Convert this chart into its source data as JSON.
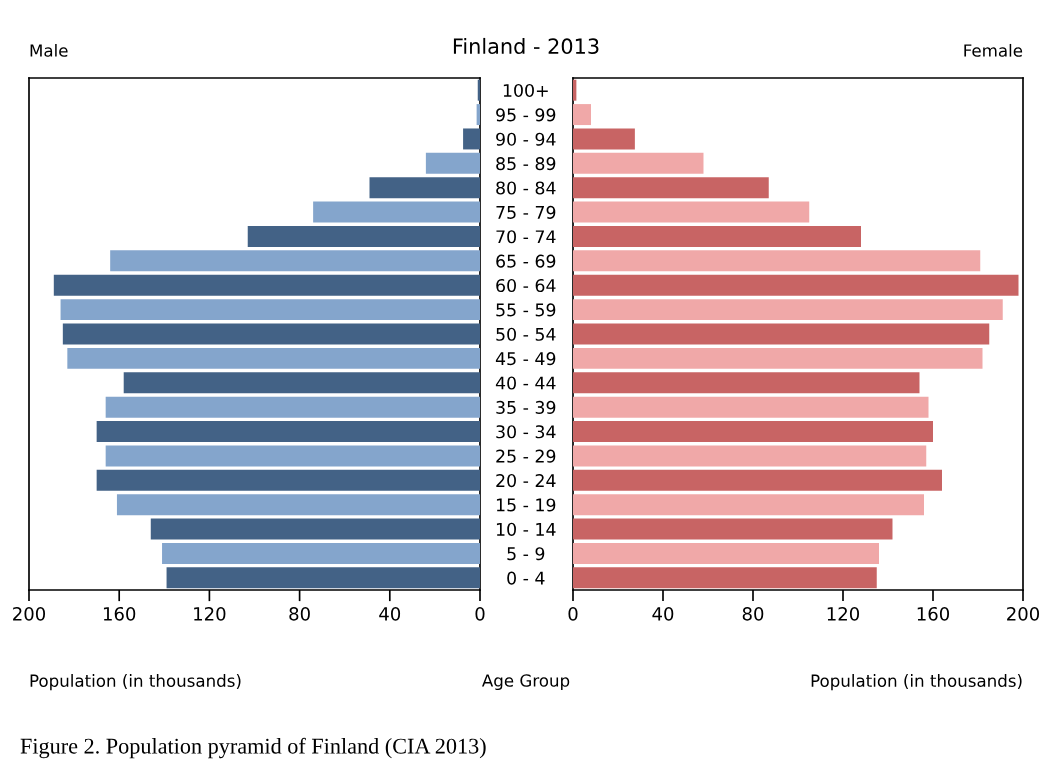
{
  "chart_data": [
    {
      "type": "bar",
      "orientation": "horizontal",
      "title": "Male",
      "xlabel": "Population (in thousands)",
      "annotations": [
        "Finland - 2013"
      ],
      "categories": [
        null,
        null,
        null,
        null,
        null,
        null,
        null,
        null,
        null,
        null,
        null,
        null,
        null,
        null,
        null,
        null,
        null,
        null,
        null,
        null,
        null
      ],
      "values": [
        1,
        1.5,
        7.5,
        24,
        49,
        74,
        103,
        164,
        189,
        186,
        185,
        183,
        158,
        166,
        170,
        166,
        170,
        161,
        146,
        141,
        139
      ],
      "colors": [
        "#436286",
        "#84a5cc",
        "#436286",
        "#84a5cc",
        "#436286",
        "#84a5cc",
        "#436286",
        "#84a5cc",
        "#436286",
        "#84a5cc",
        "#436286",
        "#84a5cc",
        "#436286",
        "#84a5cc",
        "#436286",
        "#84a5cc",
        "#436286",
        "#84a5cc",
        "#436286",
        "#84a5cc",
        "#436286"
      ],
      "xlim": [
        200,
        0
      ],
      "xticks": [
        200,
        160,
        120,
        80,
        40,
        0
      ],
      "tick_labels": "x",
      "grid": false,
      "legend": false
    },
    {
      "type": "bar",
      "orientation": "horizontal",
      "title": "Female",
      "xlabel": "Population (in thousands)",
      "ylabel": "Age Group",
      "annotations": [
        "Figure 2. Population pyramid of Finland (CIA 2013)"
      ],
      "categories": [
        "100+",
        "95 - 99",
        "90 - 94",
        "85 - 89",
        "80 - 84",
        "75 - 79",
        "70 - 74",
        "65 - 69",
        "60 - 64",
        "55 - 59",
        "50 - 54",
        "45 - 49",
        "40 - 44",
        "35 - 39",
        "30 - 34",
        "25 - 29",
        "20 - 24",
        "15 - 19",
        "10 - 14",
        "5 - 9",
        "0 - 4"
      ],
      "values": [
        1.5,
        8,
        27.5,
        58,
        87,
        105,
        128,
        181,
        198,
        191,
        185,
        182,
        154,
        158,
        160,
        157,
        164,
        156,
        142,
        136,
        135
      ],
      "colors": [
        "#c86464",
        "#f0a8a8",
        "#c86464",
        "#f0a8a8",
        "#c86464",
        "#f0a8a8",
        "#c86464",
        "#f0a8a8",
        "#c86464",
        "#f0a8a8",
        "#c86464",
        "#f0a8a8",
        "#c86464",
        "#f0a8a8",
        "#c86464",
        "#f0a8a8",
        "#c86464",
        "#f0a8a8",
        "#c86464",
        "#f0a8a8",
        "#c86464"
      ],
      "xlim": [
        0,
        200
      ],
      "xticks": [
        0,
        40,
        80,
        120,
        160,
        200
      ],
      "grid": false,
      "legend": false
    }
  ]
}
